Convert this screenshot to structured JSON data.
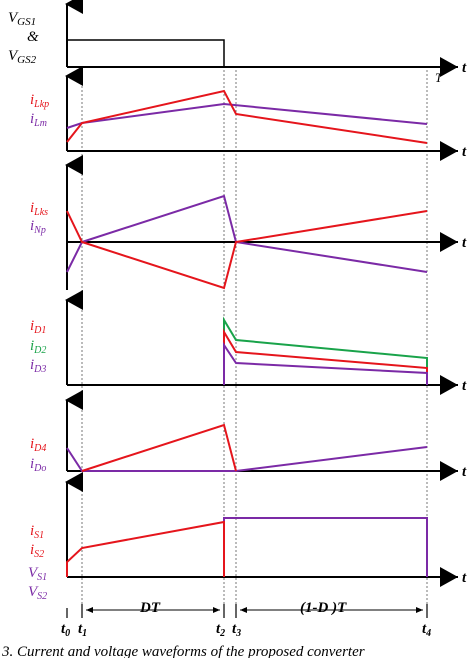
{
  "colors": {
    "red": "#e5151c",
    "purple": "#7b2aa6",
    "green": "#19a34a",
    "black": "#000000"
  },
  "panel1": {
    "label_line1": "V",
    "label_line1_sub": "GS1",
    "label_amp": "&",
    "label_line2": "V",
    "label_line2_sub": "GS2",
    "period_label": "T",
    "axis_label": "t"
  },
  "panel2": {
    "label_a": "i",
    "label_a_sub": "Lkp",
    "label_b": "i",
    "label_b_sub": "Lm",
    "axis_label": "t"
  },
  "panel3": {
    "label_a": "i",
    "label_a_sub": "Lks",
    "label_b": "i",
    "label_b_sub": "Np",
    "axis_label": "t"
  },
  "panel4": {
    "label_a": "i",
    "label_a_sub": "D1",
    "label_b": "i",
    "label_b_sub": "D2",
    "label_c": "i",
    "label_c_sub": "D3",
    "axis_label": "t"
  },
  "panel5": {
    "label_a": "i",
    "label_a_sub": "D4",
    "label_b": "i",
    "label_b_sub": "Do",
    "axis_label": "t"
  },
  "panel6": {
    "label_a": "i",
    "label_a_sub": "S1",
    "label_b": "i",
    "label_b_sub": "S2",
    "label_c": "V",
    "label_c_sub": "S1",
    "label_d": "V",
    "label_d_sub": "S2",
    "axis_label": "t"
  },
  "time_axis": {
    "t0": "t",
    "t0_sub": "0",
    "t1": "t",
    "t1_sub": "1",
    "t2": "t",
    "t2_sub": "2",
    "t3": "t",
    "t3_sub": "3",
    "t4": "t",
    "t4_sub": "4",
    "interval_dt": "DT",
    "interval_rest": "(1-D )T"
  },
  "caption": "3. Current and voltage waveforms of the proposed converter"
}
